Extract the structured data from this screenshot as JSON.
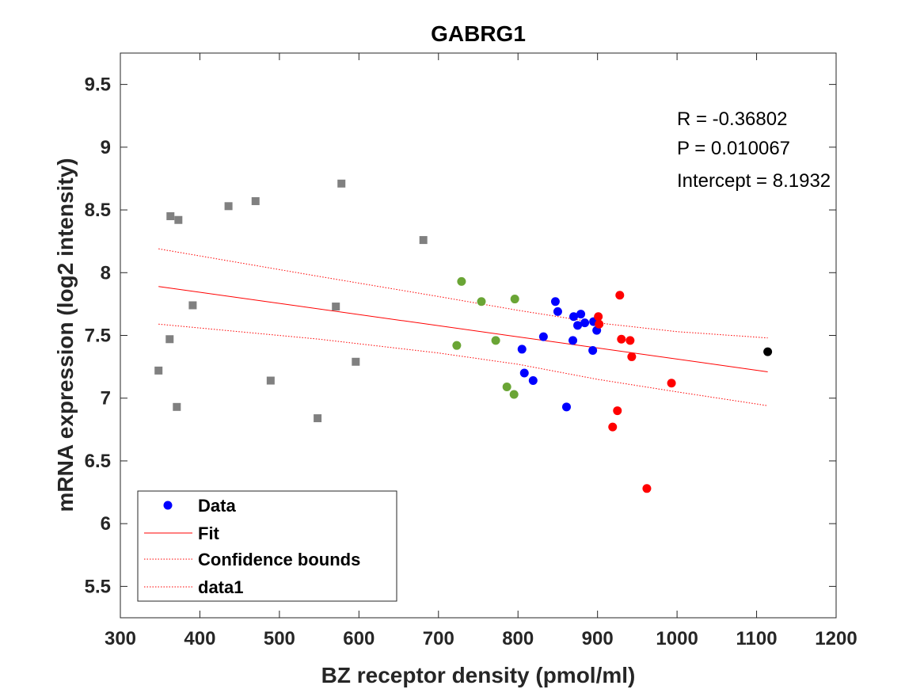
{
  "chart_data": {
    "type": "scatter",
    "title": "GABRG1",
    "xlabel": "BZ receptor density (pmol/ml)",
    "ylabel": "mRNA expression (log2 intensity)",
    "xlim": [
      300,
      1200
    ],
    "ylim": [
      5.25,
      9.75
    ],
    "xticks": [
      300,
      400,
      500,
      600,
      700,
      800,
      900,
      1000,
      1100,
      1200
    ],
    "yticks": [
      5.5,
      6,
      6.5,
      7,
      7.5,
      8,
      8.5,
      9,
      9.5
    ],
    "xtick_labels": [
      "300",
      "400",
      "500",
      "600",
      "700",
      "800",
      "900",
      "1000",
      "1100",
      "1200"
    ],
    "ytick_labels": [
      "5.5",
      "6",
      "6.5",
      "7",
      "7.5",
      "8",
      "8.5",
      "9",
      "9.5"
    ],
    "colors": {
      "gray": "#808080",
      "green": "#6aa535",
      "blue": "#0000ff",
      "red": "#ff0000",
      "black": "#000000",
      "fit": "#ff0000"
    },
    "series": [
      {
        "name": "gray-squares",
        "color": "gray",
        "marker": "square",
        "x": [
          348,
          362,
          363,
          371,
          373,
          391,
          436,
          470,
          489,
          548,
          571,
          578,
          596,
          681
        ],
        "y": [
          7.22,
          7.47,
          8.45,
          6.93,
          8.42,
          7.74,
          8.53,
          8.57,
          7.14,
          6.84,
          7.73,
          8.71,
          7.29,
          8.26
        ]
      },
      {
        "name": "green-circles",
        "color": "green",
        "marker": "circle",
        "x": [
          723,
          729,
          754,
          772,
          786,
          795,
          796
        ],
        "y": [
          7.42,
          7.93,
          7.77,
          7.46,
          7.09,
          7.03,
          7.79
        ]
      },
      {
        "name": "blue-circles",
        "color": "blue",
        "marker": "circle",
        "x": [
          805,
          808,
          819,
          832,
          847,
          850,
          861,
          869,
          870,
          875,
          879,
          884,
          894,
          895,
          899
        ],
        "y": [
          7.39,
          7.2,
          7.14,
          7.49,
          7.77,
          7.69,
          6.93,
          7.46,
          7.65,
          7.58,
          7.67,
          7.6,
          7.38,
          7.61,
          7.54
        ]
      },
      {
        "name": "red-circles",
        "color": "red",
        "marker": "circle",
        "x": [
          919,
          925,
          928,
          901,
          902,
          930,
          941,
          943,
          962,
          993
        ],
        "y": [
          6.77,
          6.9,
          7.82,
          7.65,
          7.59,
          7.47,
          7.46,
          7.33,
          6.28,
          7.12
        ]
      },
      {
        "name": "black-circle",
        "color": "black",
        "marker": "circle",
        "x": [
          1114
        ],
        "y": [
          7.37
        ]
      }
    ],
    "fit_line": {
      "x": [
        348,
        1114
      ],
      "y": [
        7.89,
        7.21
      ]
    },
    "conf_upper": {
      "x": [
        348,
        550,
        700,
        800,
        900,
        1000,
        1114
      ],
      "y": [
        8.19,
        7.97,
        7.81,
        7.7,
        7.6,
        7.53,
        7.48
      ]
    },
    "conf_lower": {
      "x": [
        348,
        550,
        700,
        800,
        900,
        1000,
        1114
      ],
      "y": [
        7.59,
        7.47,
        7.36,
        7.27,
        7.15,
        7.05,
        6.94
      ]
    },
    "annotations": {
      "r_text": "R = -0.36802",
      "p_text": "P = 0.010067",
      "intercept_text": "Intercept = 8.1932"
    },
    "legend": {
      "placement": "bottom-left",
      "entries": [
        "Data",
        "Fit",
        "Confidence bounds",
        "data1"
      ]
    }
  }
}
